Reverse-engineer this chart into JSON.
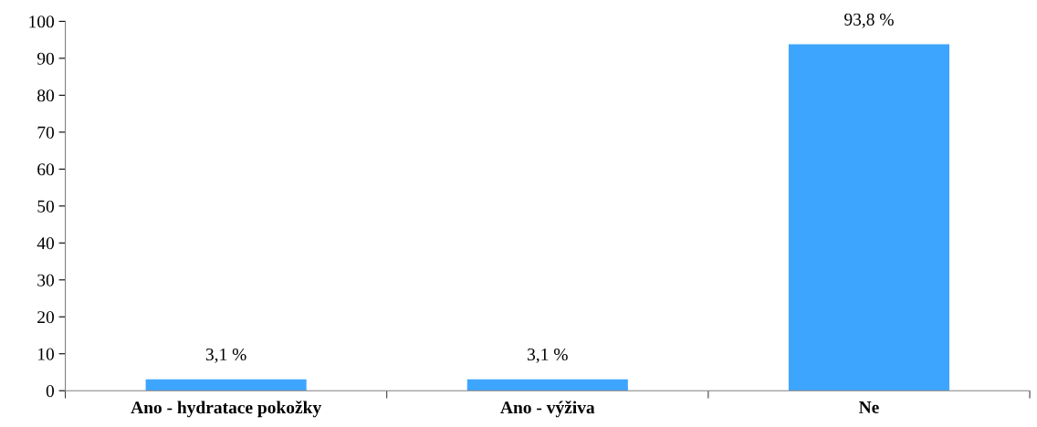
{
  "chart_data": {
    "type": "bar",
    "categories": [
      "Ano - hydratace pokožky",
      "Ano - výživa",
      "Ne"
    ],
    "values": [
      3.1,
      3.1,
      93.8
    ],
    "value_labels": [
      "3,1 %",
      "3,1 %",
      "93,8 %"
    ],
    "color": "#3ea5ff",
    "ylim": [
      0,
      100
    ],
    "yticks": [
      0,
      10,
      20,
      30,
      40,
      50,
      60,
      70,
      80,
      90,
      100
    ],
    "grid": false,
    "legend": false
  }
}
